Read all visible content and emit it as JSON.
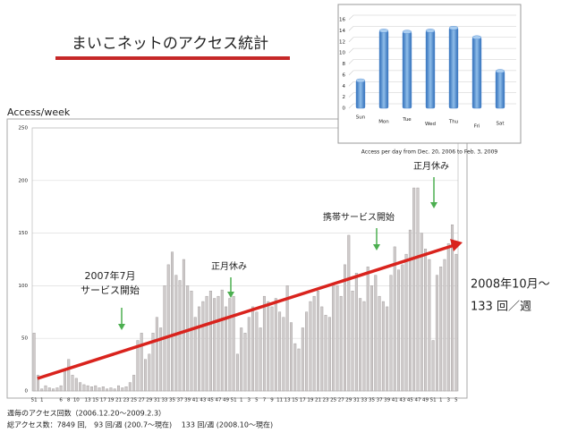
{
  "title": "まいこネットのアクセス統計",
  "chart_data": [
    {
      "type": "bar",
      "y_label": "Access/week",
      "categories": [
        "51",
        null,
        "1",
        null,
        null,
        null,
        null,
        "6",
        null,
        "8",
        null,
        "10",
        null,
        null,
        "13",
        null,
        "15",
        null,
        "17",
        null,
        "19",
        null,
        "21",
        null,
        "23",
        null,
        "25",
        null,
        "27",
        null,
        "29",
        null,
        "31",
        null,
        "33",
        null,
        "35",
        null,
        "37",
        null,
        "39",
        null,
        "41",
        null,
        "43",
        null,
        "45",
        null,
        "47",
        null,
        "49",
        null,
        "51",
        null,
        "1",
        null,
        "3",
        null,
        "5",
        null,
        "7",
        null,
        "9",
        null,
        "11",
        null,
        "13",
        null,
        "15",
        null,
        "17",
        null,
        "19",
        null,
        "21",
        null,
        "23",
        null,
        "25",
        null,
        "27",
        null,
        "29",
        null,
        "31",
        null,
        "33",
        null,
        "35",
        null,
        "37",
        null,
        "39",
        null,
        "41",
        null,
        "43",
        null,
        "45",
        null,
        "47",
        null,
        "49",
        null,
        "51",
        null,
        "1",
        null,
        "3",
        null,
        "5"
      ],
      "values": [
        55,
        15,
        2,
        5,
        3,
        2,
        3,
        5,
        20,
        30,
        15,
        12,
        8,
        6,
        5,
        4,
        5,
        3,
        4,
        2,
        3,
        2,
        5,
        3,
        4,
        8,
        15,
        48,
        55,
        30,
        35,
        55,
        70,
        60,
        100,
        120,
        132,
        110,
        105,
        125,
        100,
        95,
        70,
        80,
        85,
        90,
        95,
        88,
        90,
        96,
        80,
        88,
        90,
        35,
        60,
        55,
        70,
        80,
        75,
        60,
        90,
        85,
        80,
        88,
        75,
        70,
        100,
        65,
        45,
        40,
        60,
        75,
        85,
        90,
        95,
        80,
        72,
        70,
        102,
        100,
        90,
        120,
        148,
        95,
        112,
        88,
        85,
        118,
        100,
        110,
        90,
        85,
        80,
        110,
        137,
        115,
        120,
        130,
        153,
        193,
        193,
        150,
        135,
        125,
        48,
        110,
        118,
        125,
        140,
        158,
        130
      ],
      "color": "#cfcbcb",
      "ylim": [
        0,
        250
      ],
      "yticks": [
        0,
        50,
        100,
        150,
        200,
        250
      ],
      "grid": true,
      "annotations": [
        "2007年7月",
        "サービス開始",
        "正月休み",
        "携帯サービス開始",
        "正月休み",
        "2008年10月〜",
        "133 回／週"
      ]
    },
    {
      "type": "bar",
      "caption": "Access per day from Dec. 20, 2006 to Feb. 3, 2009",
      "categories": [
        "Sun",
        "Mon",
        "Tue",
        "Wed",
        "Thu",
        "Fri",
        "Sat"
      ],
      "values": [
        5,
        14,
        13.8,
        14,
        14.5,
        12.8,
        6.7
      ],
      "color": "#4a86cf",
      "ylim": [
        0,
        16
      ],
      "yticks": [
        0,
        2,
        4,
        6,
        8,
        10,
        12,
        14,
        16
      ],
      "grid": true
    }
  ],
  "footer": [
    "週毎のアクセス回数（2006.12.20〜2009.2.3）",
    "総アクセス数：7849 回,　93 回/週 (200.7〜現在)　 133 回/週 (2008.10〜現在)"
  ]
}
